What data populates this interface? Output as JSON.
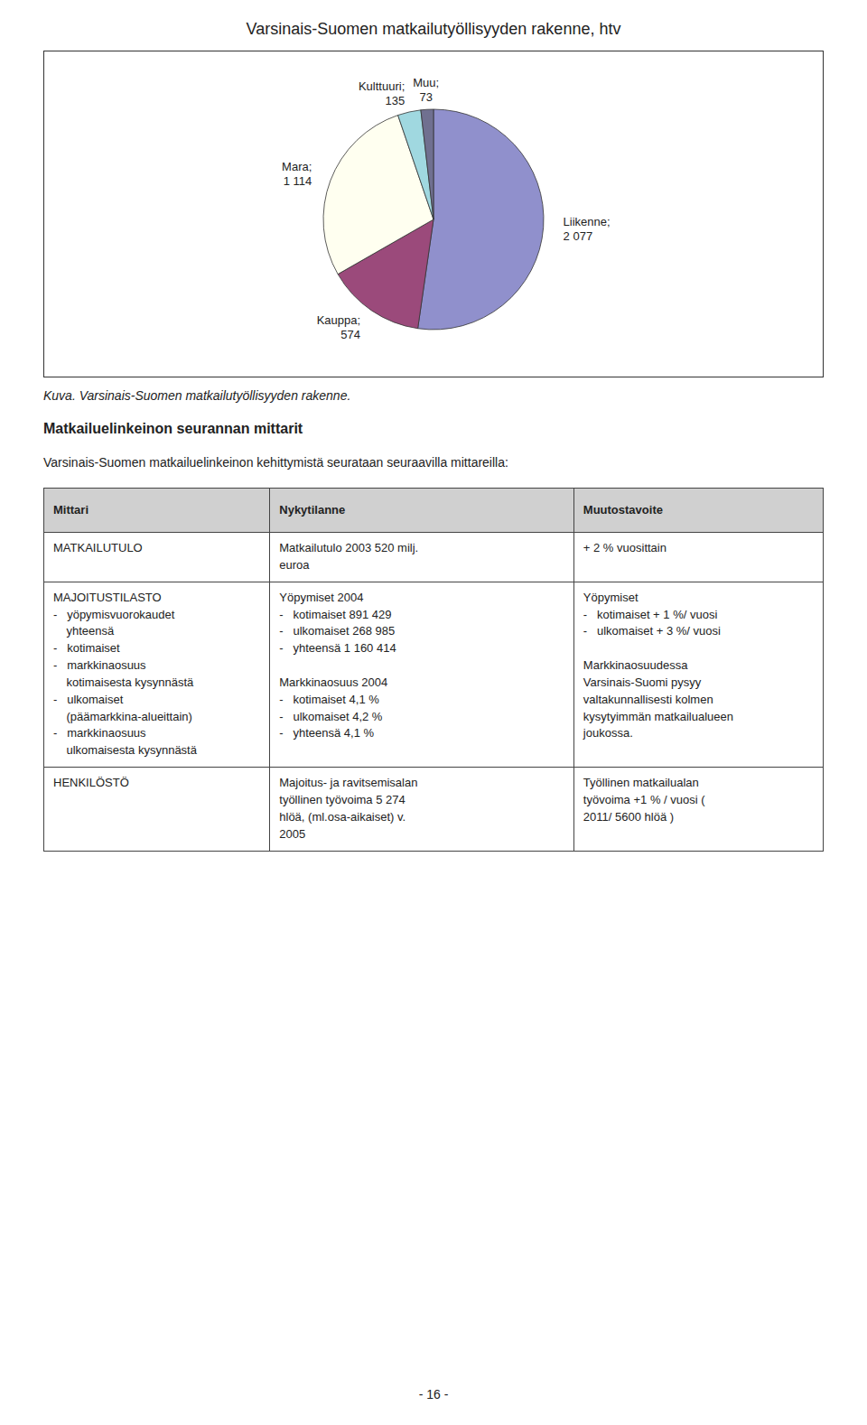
{
  "chart_data": {
    "type": "pie",
    "title": "Varsinais-Suomen matkailutyöllisyyden rakenne, htv",
    "categories": [
      "Liikenne;",
      "Kauppa;",
      "Mara;",
      "Kulttuuri;",
      "Muu;"
    ],
    "values": [
      2077,
      574,
      1114,
      135,
      73
    ],
    "value_labels": [
      "2 077",
      "574",
      "1 114",
      "135",
      "73"
    ],
    "colors": [
      "#9090cc",
      "#9b4a7b",
      "#fffff0",
      "#a0d8e0",
      "#707090"
    ],
    "data_labels": true
  },
  "caption": "Kuva. Varsinais-Suomen matkailutyöllisyyden rakenne.",
  "section_title": "Matkailuelinkeinon seurannan mittarit",
  "section_intro": "Varsinais-Suomen matkailuelinkeinon kehittymistä seurataan seuraavilla mittareilla:",
  "table": {
    "header": [
      "Mittari",
      "Nykytilanne",
      "Muutostavoite"
    ],
    "rows": [
      [
        "MATKAILUTULO",
        "Matkailutulo 2003 520 milj.\neuroa",
        "+ 2 % vuosittain"
      ],
      [
        "MAJOITUSTILASTO\n-   yöpymisvuorokaudet\n    yhteensä\n-   kotimaiset\n-   markkinaosuus\n    kotimaisesta kysynnästä\n-   ulkomaiset\n    (päämarkkina-alueittain)\n-   markkinaosuus\n    ulkomaisesta kysynnästä",
        "Yöpymiset 2004\n-   kotimaiset 891 429\n-   ulkomaiset 268 985\n-   yhteensä 1 160 414\n\nMarkkinaosuus 2004\n-   kotimaiset 4,1 %\n-   ulkomaiset 4,2 %\n-   yhteensä 4,1 %",
        "Yöpymiset\n-   kotimaiset + 1 %/ vuosi\n-   ulkomaiset + 3 %/ vuosi\n\nMarkkinaosuudessa\nVarsinais-Suomi pysyy\nvaltakunnallisesti kolmen\nkysytyimmän matkailualueen\njoukossa."
      ],
      [
        "HENKILÖSTÖ",
        "Majoitus- ja ravitsemisalan\ntyöllinen työvoima 5 274\nhlöä, (ml.osa-aikaiset) v.\n2005",
        "Työllinen matkailualan\ntyövoima +1 % / vuosi (\n2011/ 5600 hlöä )"
      ]
    ]
  },
  "page_number": "- 16 -"
}
